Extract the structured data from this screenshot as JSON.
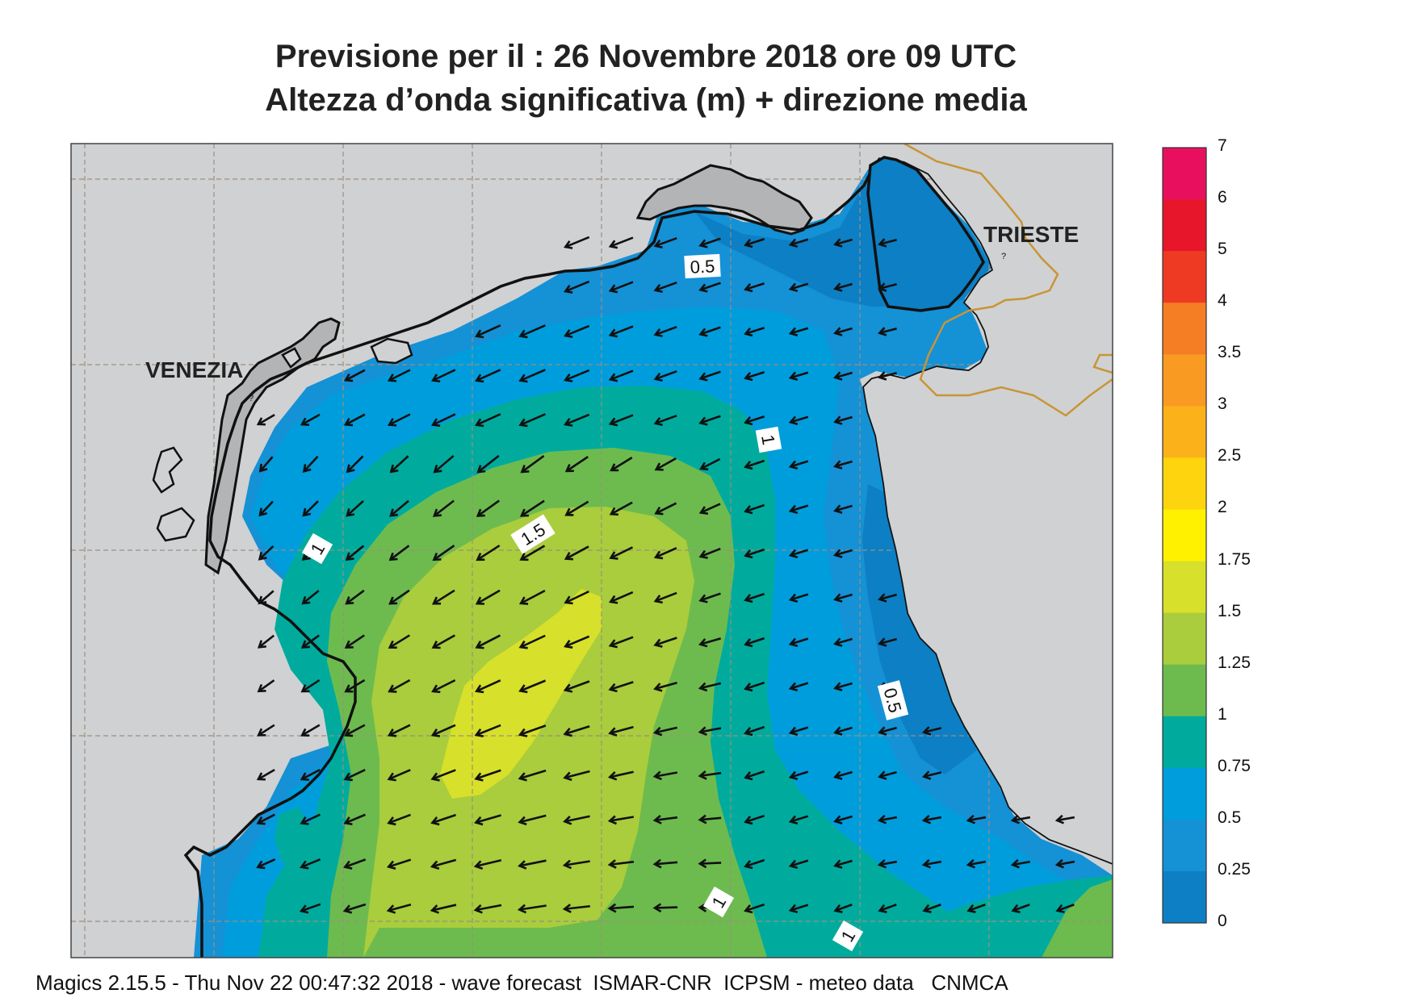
{
  "title_line1": "Previsione per il  :  26 Novembre  2018   ore 09 UTC",
  "title_line2": "Altezza d’onda significativa (m) + direzione media",
  "cities": [
    {
      "name": "VENEZIA"
    },
    {
      "name": "TRIESTE"
    }
  ],
  "contour_labels": [
    "0.5",
    "1",
    "1.5",
    "1",
    "0.5",
    "1",
    "1"
  ],
  "colorbar": {
    "levels": [
      {
        "label": "7",
        "color": "#e8105e"
      },
      {
        "label": "6",
        "color": "#e8162a"
      },
      {
        "label": "5",
        "color": "#ee3a22"
      },
      {
        "label": "4",
        "color": "#f57d24"
      },
      {
        "label": "3.5",
        "color": "#f99a22"
      },
      {
        "label": "3",
        "color": "#fbb21a"
      },
      {
        "label": "2.5",
        "color": "#fdd40e"
      },
      {
        "label": "2",
        "color": "#fff100"
      },
      {
        "label": "1.75",
        "color": "#d7e02a"
      },
      {
        "label": "1.5",
        "color": "#a9cd3c"
      },
      {
        "label": "1.25",
        "color": "#6dbb4f"
      },
      {
        "label": "1",
        "color": "#00ab9e"
      },
      {
        "label": "0.75",
        "color": "#009ddd"
      },
      {
        "label": "0.5",
        "color": "#1591d6"
      },
      {
        "label": "0.25",
        "color": "#0d7fc4"
      },
      {
        "label": "0",
        "color": "#0a67b2"
      }
    ]
  },
  "colors": {
    "land": "#d0d1d3",
    "lagoon_gray": "#b3b4b6",
    "coastline": "#111111",
    "border": "#c89535",
    "grid": "#9b8f7e",
    "arrow": "#111111"
  },
  "footer": "Magics 2.15.5 - Thu Nov 22 00:47:32 2018 - wave forecast  ISMAR-CNR  ICPSM - meteo data   CNMCA"
}
